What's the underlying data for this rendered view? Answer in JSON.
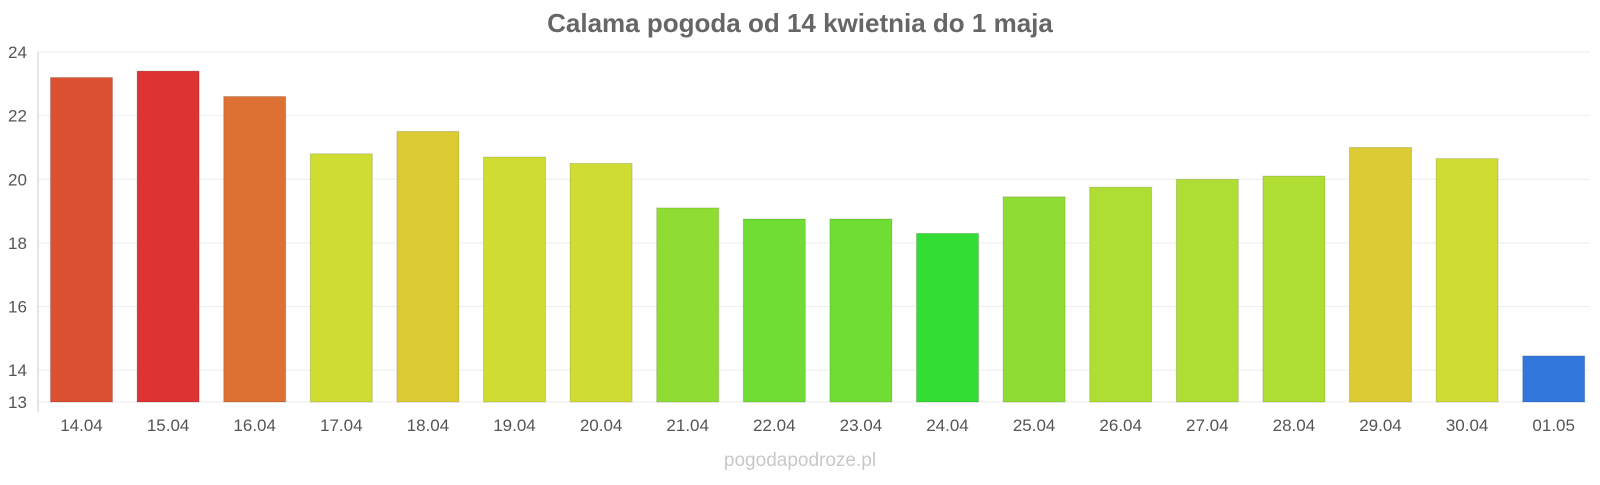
{
  "chart_data": {
    "type": "bar",
    "title": "Calama pogoda od 14 kwietnia do 1 maja",
    "xlabel": "",
    "ylabel": "",
    "categories": [
      "14.04",
      "15.04",
      "16.04",
      "17.04",
      "18.04",
      "19.04",
      "20.04",
      "21.04",
      "22.04",
      "23.04",
      "24.04",
      "25.04",
      "26.04",
      "27.04",
      "28.04",
      "29.04",
      "30.04",
      "01.05"
    ],
    "values": [
      23.2,
      23.4,
      22.6,
      20.8,
      21.5,
      20.7,
      20.5,
      19.1,
      18.75,
      18.75,
      18.3,
      19.45,
      19.75,
      20.0,
      20.1,
      21.0,
      20.65,
      14.45
    ],
    "colors": [
      "#dd5133",
      "#dd3333",
      "#dd7133",
      "#cfdd33",
      "#ddcb33",
      "#cfdd33",
      "#cfdd33",
      "#8fdd33",
      "#6fdd33",
      "#6fdd33",
      "#33dd33",
      "#8fdd33",
      "#afdd33",
      "#afdd33",
      "#afdd33",
      "#ddcb33",
      "#cfdd33",
      "#3377dd"
    ],
    "ylim": [
      13,
      24
    ],
    "yticks": [
      13,
      14,
      16,
      18,
      20,
      22,
      24
    ],
    "grid": true,
    "legend": "none"
  },
  "footer": {
    "watermark": "pogodapodroze.pl"
  }
}
